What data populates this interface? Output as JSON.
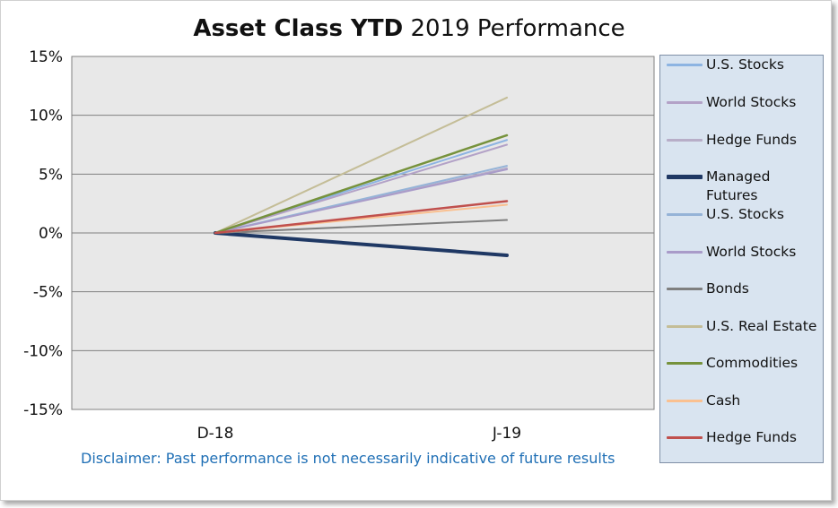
{
  "title": {
    "bold": "Asset Class YTD",
    "rest": "2019 Performance"
  },
  "disclaimer": "Disclaimer: Past performance is not necessarily indicative of future results",
  "chart_data": {
    "type": "line",
    "x": [
      "D-18",
      "J-19"
    ],
    "ylim": [
      -0.15,
      0.15
    ],
    "yticks": [
      0.15,
      0.1,
      0.05,
      0.0,
      -0.05,
      -0.1,
      -0.15
    ],
    "ytick_labels": [
      "15%",
      "10%",
      "5%",
      "0%",
      "-5%",
      "-10%",
      "-15%"
    ],
    "grid": true,
    "legend_position": "right",
    "series": [
      {
        "name": "U.S. Stocks",
        "values": [
          0,
          0.079
        ],
        "color": "#8db4e2",
        "width": 2
      },
      {
        "name": "World Stocks",
        "values": [
          0,
          0.075
        ],
        "color": "#b3a2c7",
        "width": 2
      },
      {
        "name": "Hedge Funds",
        "values": [
          0,
          0.055
        ],
        "color": "#b8aec8",
        "width": 2
      },
      {
        "name": "Managed Futures",
        "values": [
          0,
          -0.019
        ],
        "color": "#1f3864",
        "width": 4
      },
      {
        "name": "U.S. Stocks",
        "values": [
          0,
          0.057
        ],
        "color": "#95b3d7",
        "width": 2
      },
      {
        "name": "World Stocks",
        "values": [
          0,
          0.054
        ],
        "color": "#a99bc9",
        "width": 2
      },
      {
        "name": "Bonds",
        "values": [
          0,
          0.011
        ],
        "color": "#7f7f7f",
        "width": 2
      },
      {
        "name": "U.S. Real Estate",
        "values": [
          0,
          0.115
        ],
        "color": "#c4bd97",
        "width": 2
      },
      {
        "name": "Commodities",
        "values": [
          0,
          0.083
        ],
        "color": "#76923c",
        "width": 2.5
      },
      {
        "name": "Cash",
        "values": [
          0,
          0.024
        ],
        "color": "#fac090",
        "width": 2
      },
      {
        "name": "Hedge Funds",
        "values": [
          0,
          0.027
        ],
        "color": "#c0504d",
        "width": 2.5
      }
    ]
  },
  "colors": {
    "plot_bg": "#e8e8e8",
    "legend_bg": "#d9e4f0",
    "disclaimer": "#1f6fb5"
  }
}
